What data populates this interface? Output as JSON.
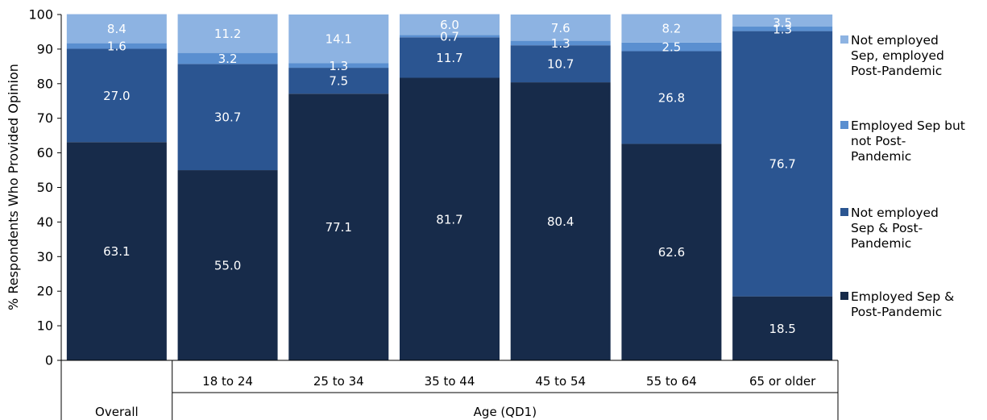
{
  "chart_data": {
    "type": "bar",
    "stacked": true,
    "ylabel": "% Respondents Who Provided Opinion",
    "ylim": [
      0,
      100
    ],
    "yticks": [
      0,
      10,
      20,
      30,
      40,
      50,
      60,
      70,
      80,
      90,
      100
    ],
    "grid": false,
    "legend_position": "right",
    "categories": [
      "Overall",
      "18 to 24",
      "25 to 34",
      "35 to 44",
      "45 to 54",
      "55 to 64",
      "65 or older"
    ],
    "category_group_label": "Age (QD1)",
    "series": [
      {
        "name": "Employed Sep & Post-Pandemic",
        "legend_lines": [
          "Employed Sep &",
          "Post-Pandemic"
        ],
        "color": "#172b4a",
        "values": [
          63.1,
          55.0,
          77.1,
          81.7,
          80.4,
          62.6,
          18.5
        ],
        "labels": [
          "63.1",
          "55.0",
          "77.1",
          "81.7",
          "80.4",
          "62.6",
          "18.5"
        ]
      },
      {
        "name": "Not employed Sep & Post-Pandemic",
        "legend_lines": [
          "Not employed",
          "Sep & Post-",
          "Pandemic"
        ],
        "color": "#2b5591",
        "values": [
          27.0,
          30.7,
          7.5,
          11.7,
          10.7,
          26.8,
          76.7
        ],
        "labels": [
          "27.0",
          "30.7",
          "7.5",
          "11.7",
          "10.7",
          "26.8",
          "76.7"
        ]
      },
      {
        "name": "Employed Sep but not Post-Pandemic",
        "legend_lines": [
          "Employed Sep but",
          "not Post-",
          "Pandemic"
        ],
        "color": "#5a8fd0",
        "values": [
          1.6,
          3.2,
          1.3,
          0.7,
          1.3,
          2.5,
          1.3
        ],
        "labels": [
          "1.6",
          "3.2",
          "1.3",
          "0.7",
          "1.3",
          "2.5",
          "1.3"
        ]
      },
      {
        "name": "Not employed Sep, employed Post-Pandemic",
        "legend_lines": [
          "Not employed",
          "Sep, employed",
          "Post-Pandemic"
        ],
        "color": "#8db3e2",
        "values": [
          8.4,
          11.2,
          14.1,
          6.0,
          7.6,
          8.2,
          3.5
        ],
        "labels": [
          "8.4",
          "11.2",
          "14.1",
          "6.0",
          "7.6",
          "8.2",
          "3.5"
        ]
      }
    ]
  }
}
